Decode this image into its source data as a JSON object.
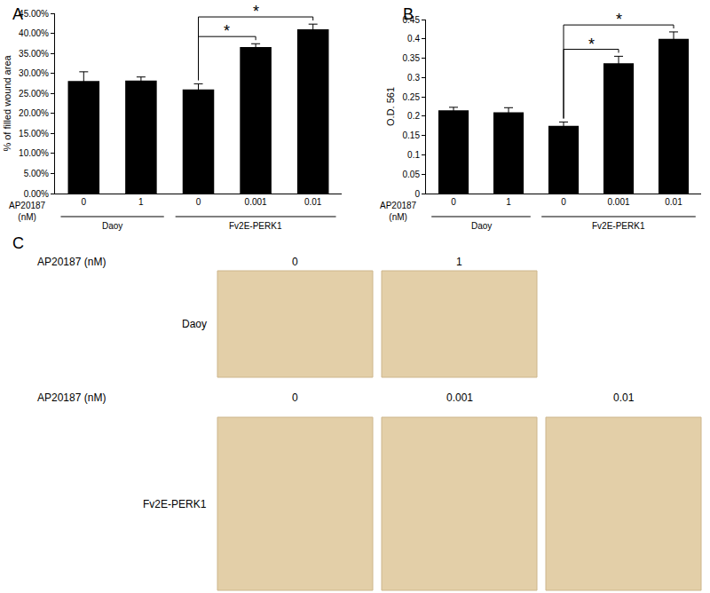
{
  "chart_data": [
    {
      "panel": "A",
      "type": "bar",
      "categories": [
        "0",
        "1",
        "0",
        "0.001",
        "0.01"
      ],
      "groups": [
        "Daoy",
        "Daoy",
        "Fv2E-PERK1",
        "Fv2E-PERK1",
        "Fv2E-PERK1"
      ],
      "xlabel": "AP20187 (nM)",
      "values": [
        28.1,
        28.2,
        26.0,
        36.6,
        41.0
      ],
      "errors": [
        2.3,
        0.9,
        1.4,
        0.8,
        1.3
      ],
      "color": "#000000",
      "ylim": [
        0,
        45
      ],
      "yticks": [
        {
          "value": 0,
          "label": "0.00%"
        },
        {
          "value": 5,
          "label": "5.00%"
        },
        {
          "value": 10,
          "label": "10.00%"
        },
        {
          "value": 15,
          "label": "15.00%"
        },
        {
          "value": 20,
          "label": "20.00%"
        },
        {
          "value": 25,
          "label": "25.00%"
        },
        {
          "value": 30,
          "label": "30.00%"
        },
        {
          "value": 35,
          "label": "35.00%"
        },
        {
          "value": 40,
          "label": "40.00%"
        },
        {
          "value": 45,
          "label": "45.00%"
        }
      ],
      "ylabel": "% of filled wound area",
      "grid": false,
      "annotations": [
        {
          "from": 2,
          "to": 3,
          "text": "*"
        },
        {
          "from": 2,
          "to": 4,
          "text": "*"
        }
      ]
    },
    {
      "panel": "B",
      "type": "bar",
      "categories": [
        "0",
        "1",
        "0",
        "0.001",
        "0.01"
      ],
      "groups": [
        "Daoy",
        "Daoy",
        "Fv2E-PERK1",
        "Fv2E-PERK1",
        "Fv2E-PERK1"
      ],
      "xlabel": "AP20187 (nM)",
      "values": [
        0.215,
        0.21,
        0.175,
        0.337,
        0.4
      ],
      "errors": [
        0.008,
        0.012,
        0.01,
        0.018,
        0.018
      ],
      "color": "#000000",
      "ylim": [
        0,
        0.45
      ],
      "yticks": [
        0,
        0.05,
        0.1,
        0.15,
        0.2,
        0.25,
        0.3,
        0.35,
        0.4,
        0.45
      ],
      "ylabel": "O.D. 561",
      "grid": false,
      "annotations": [
        {
          "from": 2,
          "to": 3,
          "text": "*"
        },
        {
          "from": 2,
          "to": 4,
          "text": "*"
        }
      ]
    }
  ],
  "panel_c": {
    "panel": "C",
    "rows": [
      {
        "label": "Daoy",
        "xlabel": "AP20187 (nM)",
        "columns": [
          "0",
          "1"
        ]
      },
      {
        "label": "Fv2E-PERK1",
        "xlabel": "AP20187 (nM)",
        "columns": [
          "0",
          "0.001",
          "0.01"
        ]
      }
    ]
  }
}
